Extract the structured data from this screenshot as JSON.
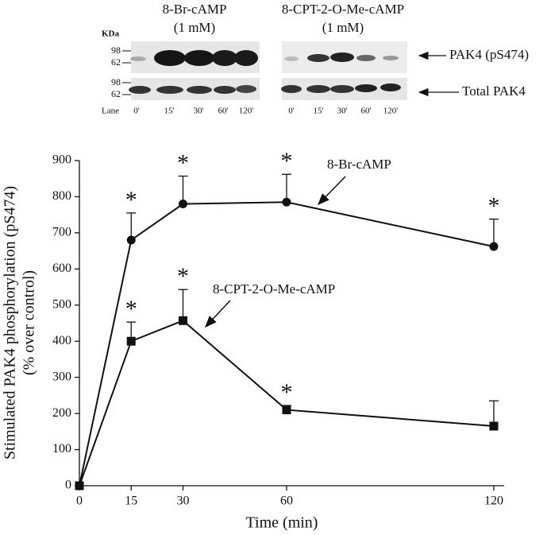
{
  "blot": {
    "treatments": [
      {
        "name": "8-Br-cAMP",
        "dose": "(1 mM)",
        "lanes": [
          "0'",
          "15'",
          "30'",
          "60'",
          "120'"
        ]
      },
      {
        "name": "8-CPT-2-O-Me-cAMP",
        "dose": "(1 mM)",
        "lanes": [
          "0'",
          "15'",
          "30'",
          "60'",
          "120'"
        ]
      }
    ],
    "kda_label": "KDa",
    "size_markers": [
      "98",
      "62",
      "98",
      "62"
    ],
    "rows": [
      "PAK4 (pS474)",
      "Total PAK4"
    ],
    "lane_label": "Lane"
  },
  "chart_data": {
    "type": "line",
    "xlabel": "Time (min)",
    "ylabel": [
      "Stimulated PAK4 phosphorylation (pS474)",
      "(% over control)"
    ],
    "x": [
      0,
      15,
      30,
      60,
      120
    ],
    "series": [
      {
        "name": "8-Br-cAMP",
        "color": "#111111",
        "marker": "circle",
        "values": [
          0,
          680,
          780,
          785,
          662
        ],
        "errors": [
          null,
          75,
          77,
          77,
          76
        ],
        "significance": [
          null,
          "*",
          "*",
          "*",
          "*"
        ]
      },
      {
        "name": "8-CPT-2-O-Me-cAMP",
        "color": "#111111",
        "marker": "square",
        "values": [
          0,
          400,
          457,
          210,
          165
        ],
        "errors": [
          null,
          53,
          86,
          12,
          70
        ],
        "significance": [
          null,
          "*",
          "*",
          "*",
          null
        ]
      }
    ],
    "xlim": [
      0,
      123
    ],
    "ylim": [
      0,
      900
    ],
    "xticks": [
      0,
      15,
      30,
      60,
      120
    ],
    "yticks": [
      0,
      100,
      200,
      300,
      400,
      500,
      600,
      700,
      800,
      900
    ]
  }
}
